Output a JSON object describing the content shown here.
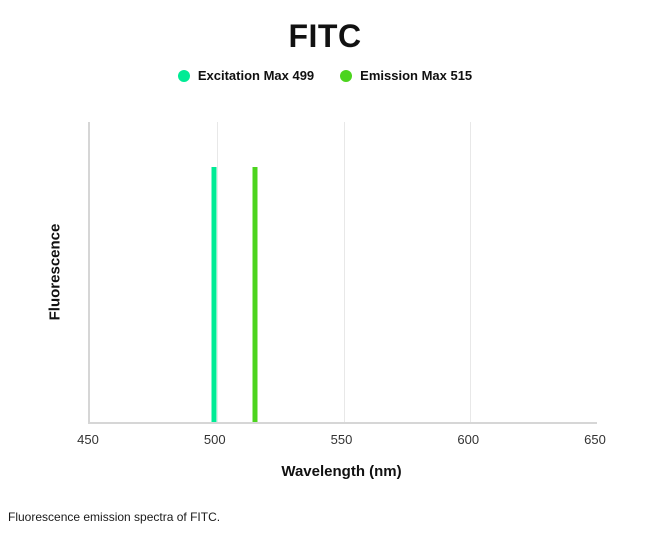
{
  "title": "FITC",
  "caption": "Fluorescence emission spectra of FITC.",
  "chart_data": {
    "type": "line",
    "title": "FITC",
    "subtitle": "",
    "xlabel": "Wavelength (nm)",
    "ylabel": "Fluorescence",
    "xlim": [
      450,
      650
    ],
    "x_ticks": [
      450,
      500,
      550,
      600,
      650
    ],
    "grid": true,
    "legend_position": "top-center",
    "series": [
      {
        "name": "Excitation Max 499",
        "wavelength_nm": 499,
        "peak_height_fraction": 0.85,
        "color": "#00EB95"
      },
      {
        "name": "Emission Max 515",
        "wavelength_nm": 515,
        "peak_height_fraction": 0.85,
        "color": "#4CD41E"
      }
    ]
  }
}
